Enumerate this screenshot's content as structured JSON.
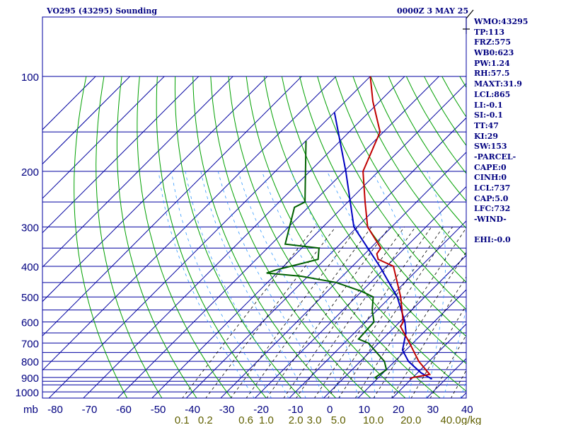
{
  "header": {
    "title": "VO295 (43295) Sounding",
    "time": "0000Z  3 MAY 25"
  },
  "indices": [
    "WMO:43295",
    "TP:113",
    "FRZ:575",
    "WB0:623",
    "PW:1.24",
    "RH:57.5",
    "MAXT:31.9",
    "LCL:865",
    "LI:-0.1",
    "SI:-0.1",
    "TT:47",
    "KI:29",
    "SW:153",
    "-PARCEL-",
    "CAPE:0",
    "CINH:0",
    "LCL:737",
    "CAP:5.0",
    "LFC:732",
    "-WIND-",
    "",
    "EHI:-0.0"
  ],
  "colors": {
    "isobar": "#0000a0",
    "isotherm": "#0000a0",
    "dry_adiabat": "#00a000",
    "moist_adiabat": "#0000a0",
    "mixing_ratio": "#000000",
    "temperature": "#c00000",
    "dewpoint": "#006000",
    "parcel": "#0000c0",
    "labels": "#000080",
    "mixing_labels": "#606000"
  },
  "chart_data": {
    "type": "skew-t",
    "pressure_unit": "mb",
    "mixing_ratio_unit": "g/kg",
    "pressure_ticks": [
      100,
      200,
      300,
      400,
      500,
      600,
      700,
      800,
      900,
      1000
    ],
    "pressure_ticks_labels": [
      "100",
      "200",
      "300",
      "400",
      "500",
      "600",
      "700",
      "800",
      "900",
      "1000"
    ],
    "isobars": [
      100,
      150,
      200,
      250,
      300,
      350,
      400,
      450,
      500,
      550,
      600,
      650,
      700,
      750,
      800,
      850,
      900,
      925,
      950,
      1000,
      1050
    ],
    "temperature_ticks": [
      -80,
      -70,
      -60,
      -50,
      -40,
      -30,
      -20,
      -10,
      0,
      10,
      20,
      30,
      40
    ],
    "temperature_tick_labels": [
      "-80",
      "-70",
      "-60",
      "-50",
      "-40",
      "-30",
      "-20",
      "-10",
      "0",
      "10",
      "20",
      "30",
      "40"
    ],
    "mixing_ratio_lines": [
      0.1,
      0.2,
      0.6,
      1.0,
      2.0,
      3.0,
      5.0,
      10.0,
      20.0,
      40.0
    ],
    "mixing_ratio_labels": [
      "0.1",
      "0.2",
      "0.6",
      "1.0",
      "2.0",
      "3.0",
      "5.0",
      "10.0",
      "20.0",
      "40.0"
    ],
    "temperature_profile": [
      {
        "p": 100,
        "t": -80
      },
      {
        "p": 120,
        "t": -72
      },
      {
        "p": 150,
        "t": -61
      },
      {
        "p": 200,
        "t": -54.5
      },
      {
        "p": 250,
        "t": -45
      },
      {
        "p": 300,
        "t": -37
      },
      {
        "p": 350,
        "t": -27
      },
      {
        "p": 365,
        "t": -26.5
      },
      {
        "p": 380,
        "t": -24.5
      },
      {
        "p": 400,
        "t": -18
      },
      {
        "p": 500,
        "t": -7
      },
      {
        "p": 600,
        "t": 1
      },
      {
        "p": 620,
        "t": 1.5
      },
      {
        "p": 700,
        "t": 9
      },
      {
        "p": 800,
        "t": 17
      },
      {
        "p": 880,
        "t": 24
      },
      {
        "p": 900,
        "t": 20
      },
      {
        "p": 910,
        "t": 19.5
      }
    ],
    "dewpoint_profile": [
      {
        "p": 160,
        "t": -80
      },
      {
        "p": 250,
        "t": -62.5
      },
      {
        "p": 260,
        "t": -64
      },
      {
        "p": 340,
        "t": -56
      },
      {
        "p": 350,
        "t": -45
      },
      {
        "p": 380,
        "t": -42
      },
      {
        "p": 390,
        "t": -45
      },
      {
        "p": 410,
        "t": -51
      },
      {
        "p": 420,
        "t": -53
      },
      {
        "p": 430,
        "t": -42
      },
      {
        "p": 450,
        "t": -30
      },
      {
        "p": 480,
        "t": -20
      },
      {
        "p": 500,
        "t": -15
      },
      {
        "p": 550,
        "t": -11.5
      },
      {
        "p": 600,
        "t": -7.5
      },
      {
        "p": 680,
        "t": -7
      },
      {
        "p": 700,
        "t": -3
      },
      {
        "p": 800,
        "t": 7
      },
      {
        "p": 850,
        "t": 10
      },
      {
        "p": 900,
        "t": 9
      },
      {
        "p": 910,
        "t": 10
      }
    ],
    "parcel_profile": [
      {
        "p": 130,
        "t": -80
      },
      {
        "p": 200,
        "t": -59.5
      },
      {
        "p": 300,
        "t": -41
      },
      {
        "p": 400,
        "t": -22
      },
      {
        "p": 500,
        "t": -8
      },
      {
        "p": 600,
        "t": 1.5
      },
      {
        "p": 650,
        "t": 5
      },
      {
        "p": 737,
        "t": 9
      },
      {
        "p": 800,
        "t": 14
      },
      {
        "p": 870,
        "t": 21
      },
      {
        "p": 910,
        "t": 26
      }
    ],
    "wind_barbs": [
      {
        "p": 100,
        "direction": "flag"
      }
    ]
  }
}
